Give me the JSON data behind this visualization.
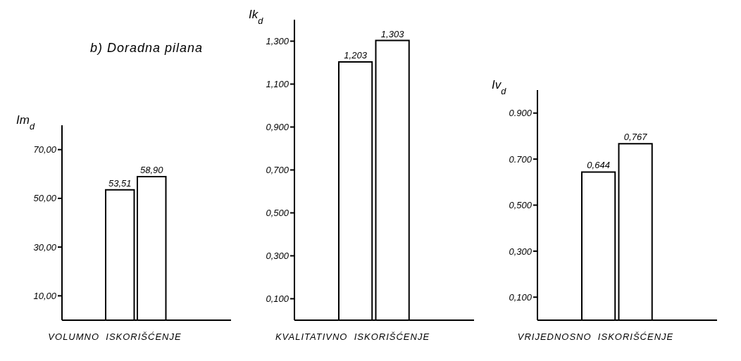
{
  "chart_data": [
    {
      "type": "bar",
      "title": "b) Doradna pilana",
      "xlabel": "VOLUMNO  ISKORIŠĆENJE",
      "ylabel": "Im$_{d}$",
      "categories": [
        null,
        null
      ],
      "values": [
        53.51,
        58.9
      ],
      "value_labels": [
        "53,51",
        "58,90"
      ],
      "colors": [
        "#ffffff",
        "#ffffff"
      ],
      "ylim": [
        0,
        80
      ],
      "yticks": [
        {
          "value": 10,
          "label": "10,00"
        },
        {
          "value": 30,
          "label": "30,00"
        },
        {
          "value": 50,
          "label": "50,00"
        },
        {
          "value": 70,
          "label": "70,00"
        }
      ],
      "grid": false,
      "legend": false
    },
    {
      "type": "bar",
      "xlabel": "KVALITATIVNO  ISKORIŠĆENJE",
      "ylabel": "Ik$_{d}$",
      "categories": [
        null,
        null
      ],
      "values": [
        1.203,
        1.303
      ],
      "value_labels": [
        "1,203",
        "1,303"
      ],
      "colors": [
        "#ffffff",
        "#ffffff"
      ],
      "ylim": [
        0,
        1.4
      ],
      "yticks": [
        {
          "value": 0.1,
          "label": "0,100"
        },
        {
          "value": 0.3,
          "label": "0,300"
        },
        {
          "value": 0.5,
          "label": "0,500"
        },
        {
          "value": 0.7,
          "label": "0,700"
        },
        {
          "value": 0.9,
          "label": "0,900"
        },
        {
          "value": 1.1,
          "label": "1,100"
        },
        {
          "value": 1.3,
          "label": "1,300"
        }
      ],
      "grid": false,
      "legend": false
    },
    {
      "type": "bar",
      "xlabel": "VRIJEDNOSNO  ISKORIŠĆENJE",
      "ylabel": "Iv$_{d}$",
      "categories": [
        null,
        null
      ],
      "values": [
        0.644,
        0.767
      ],
      "value_labels": [
        "0,644",
        "0,767"
      ],
      "colors": [
        "#ffffff",
        "#ffffff"
      ],
      "ylim": [
        0,
        1.0
      ],
      "yticks": [
        {
          "value": 0.1,
          "label": "0,100"
        },
        {
          "value": 0.3,
          "label": "0,300"
        },
        {
          "value": 0.5,
          "label": "0,500"
        },
        {
          "value": 0.7,
          "label": "0.700"
        },
        {
          "value": 0.9,
          "label": "0.900"
        }
      ],
      "grid": false,
      "legend": false
    }
  ]
}
